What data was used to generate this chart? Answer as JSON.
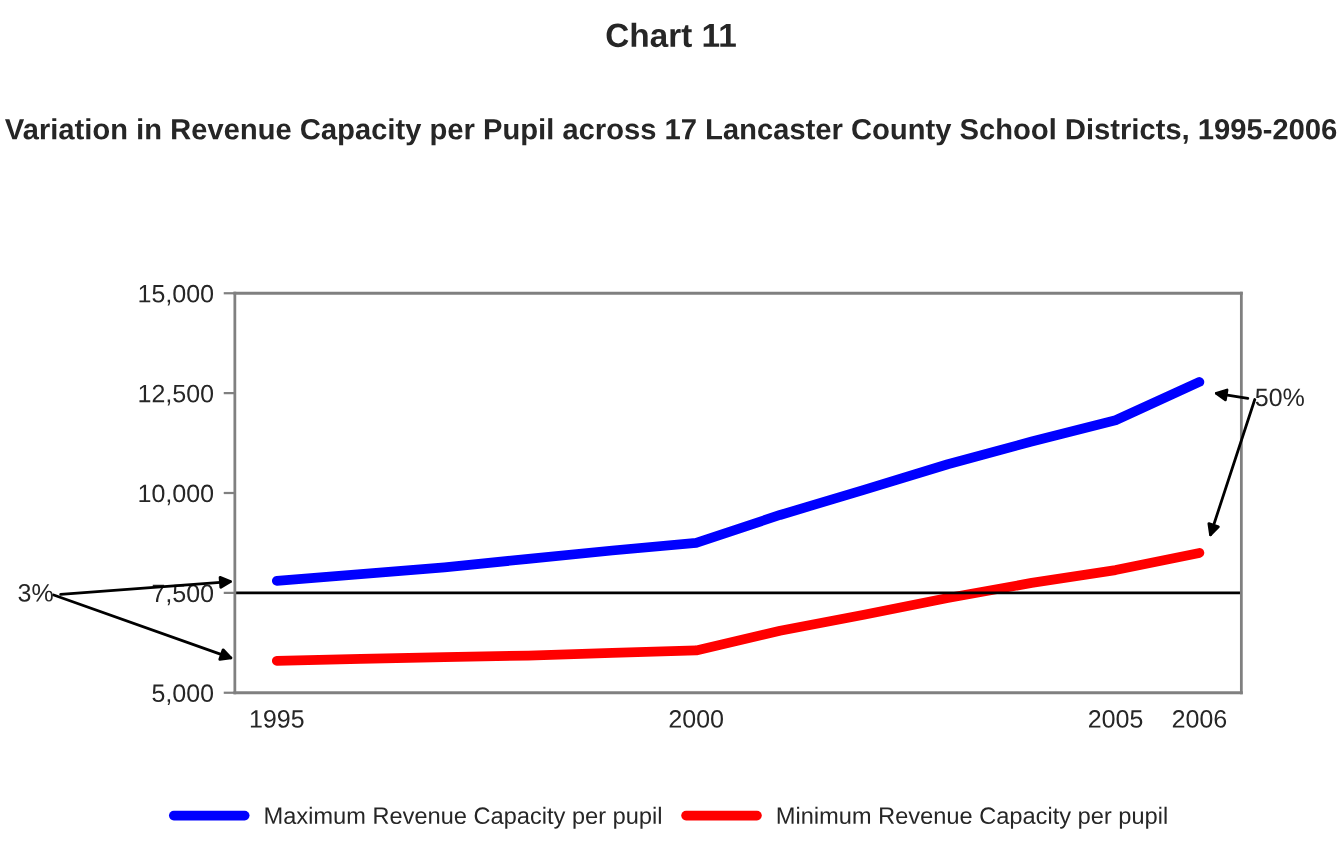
{
  "chart_data": {
    "type": "line",
    "title": "Chart 11",
    "subtitle": "Variation in Revenue Capacity per Pupil across 17 Lancaster County School Districts, 1995-2006",
    "categories": [
      "1995",
      null,
      null,
      null,
      null,
      "2000",
      null,
      null,
      null,
      null,
      "2005",
      "2006"
    ],
    "series": [
      {
        "name": "Maximum Revenue Capacity per pupil",
        "color": "#0000ff",
        "values": [
          7800,
          7970,
          8140,
          8350,
          8560,
          8750,
          9450,
          10080,
          10720,
          11290,
          11820,
          12780
        ]
      },
      {
        "name": "Minimum Revenue Capacity per pupil",
        "color": "#ff0000",
        "values": [
          5800,
          5850,
          5890,
          5930,
          6000,
          6060,
          6550,
          6950,
          7370,
          7750,
          8070,
          8500
        ]
      }
    ],
    "ylim": [
      5000,
      15000
    ],
    "yticks": [
      {
        "value": 5000,
        "label": "5,000"
      },
      {
        "value": 7500,
        "label": "7,500"
      },
      {
        "value": 10000,
        "label": "10,000"
      },
      {
        "value": 12500,
        "label": "12,500"
      },
      {
        "value": 15000,
        "label": "15,000"
      }
    ],
    "ref_lines": [
      {
        "axis": "y",
        "value": 7500,
        "color": "#000000"
      }
    ],
    "annotations": [
      "3%",
      "50%"
    ],
    "legend": "bottom",
    "grid": false
  }
}
